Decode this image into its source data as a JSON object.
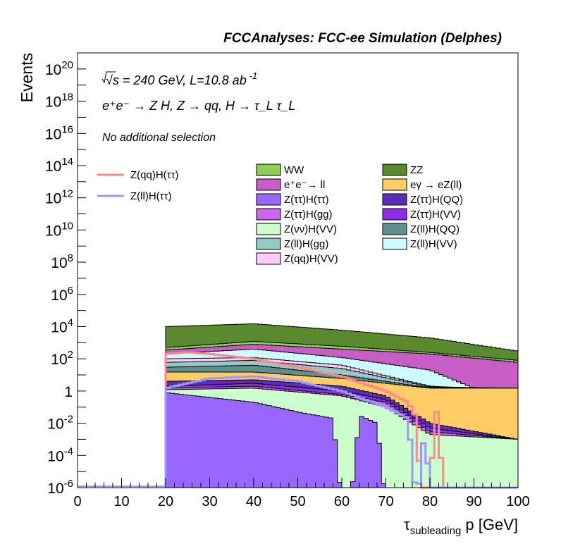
{
  "header": {
    "title": "FCCAnalyses: FCC-ee Simulation (Delphes)"
  },
  "annotations": {
    "energy_line_sqrt": "√s",
    "energy_line_rest": " = 240 GeV, L=10.8 ab",
    "energy_line_exp": "-1",
    "process_line": "e⁺e⁻ → Z H, Z → qq, H → τ_L τ_L",
    "selection": "No additional selection"
  },
  "chart_data": {
    "type": "histogram",
    "ylog": true,
    "title": "FCCAnalyses: FCC-ee Simulation (Delphes)",
    "xlabel": "τ_subleading p [GeV]",
    "xlabel_main": "τ",
    "xlabel_sub": "subleading",
    "xlabel_rest": " p [GeV]",
    "ylabel": "Events",
    "xlim": [
      0,
      100
    ],
    "ylim": [
      1e-06,
      1e+21
    ],
    "xticks": [
      "0",
      "10",
      "20",
      "30",
      "40",
      "50",
      "60",
      "70",
      "80",
      "90",
      "100"
    ],
    "yticks": [
      {
        "base": "10",
        "exp": "-6",
        "value": 1e-06
      },
      {
        "base": "10",
        "exp": "-4",
        "value": 0.0001
      },
      {
        "base": "10",
        "exp": "-2",
        "value": 0.01
      },
      {
        "base": "1",
        "exp": "",
        "value": 1
      },
      {
        "base": "10",
        "exp": "2",
        "value": 100.0
      },
      {
        "base": "10",
        "exp": "4",
        "value": 10000.0
      },
      {
        "base": "10",
        "exp": "6",
        "value": 1000000.0
      },
      {
        "base": "10",
        "exp": "8",
        "value": 100000000.0
      },
      {
        "base": "10",
        "exp": "10",
        "value": 10000000000.0
      },
      {
        "base": "10",
        "exp": "12",
        "value": 1000000000000.0
      },
      {
        "base": "10",
        "exp": "14",
        "value": 100000000000000.0
      },
      {
        "base": "10",
        "exp": "16",
        "value": 1e+16
      },
      {
        "base": "10",
        "exp": "18",
        "value": 1e+18
      },
      {
        "base": "10",
        "exp": "20",
        "value": 1e+20
      }
    ],
    "stack_envelopes": [
      {
        "name": "ZZ",
        "color": "#5a8a2e",
        "anchors": [
          [
            20,
            10000
          ],
          [
            40,
            15000
          ],
          [
            60,
            6000
          ],
          [
            80,
            2000
          ],
          [
            100,
            300
          ]
        ]
      },
      {
        "name": "WW",
        "color": "#8fcf58",
        "anchors": [
          [
            20,
            500
          ],
          [
            40,
            1200
          ],
          [
            60,
            600
          ],
          [
            80,
            250
          ],
          [
            100,
            80
          ]
        ]
      },
      {
        "name": "e⁺e⁻ → ll",
        "color": "#c85dc8",
        "anchors": [
          [
            20,
            350
          ],
          [
            40,
            800
          ],
          [
            60,
            400
          ],
          [
            80,
            200
          ],
          [
            100,
            60
          ]
        ]
      },
      {
        "name": "Z(ll)H(VV)",
        "color": "#ccfcfc",
        "anchors": [
          [
            20,
            200
          ],
          [
            40,
            400
          ],
          [
            60,
            120
          ],
          [
            80,
            20
          ],
          [
            90,
            1.5
          ],
          [
            100,
            1.5
          ]
        ]
      },
      {
        "name": "Z(qq)H(VV)",
        "color": "#ffccff",
        "anchors": [
          [
            20,
            100
          ],
          [
            40,
            120
          ],
          [
            60,
            40
          ],
          [
            80,
            2
          ],
          [
            90,
            1.5
          ],
          [
            100,
            1.5
          ]
        ]
      },
      {
        "name": "Z(ll)H(gg)",
        "color": "#96c8c8",
        "anchors": [
          [
            20,
            60
          ],
          [
            40,
            80
          ],
          [
            60,
            25
          ],
          [
            80,
            1.8
          ],
          [
            100,
            1.5
          ]
        ]
      },
      {
        "name": "Z(ll)H(QQ)",
        "color": "#5f8f8f",
        "anchors": [
          [
            20,
            30
          ],
          [
            40,
            40
          ],
          [
            60,
            10
          ],
          [
            80,
            1.6
          ],
          [
            100,
            1.5
          ]
        ]
      },
      {
        "name": "eγ → eZ(ll)",
        "color": "#ffcc66",
        "anchors": [
          [
            20,
            15
          ],
          [
            40,
            15
          ],
          [
            60,
            6
          ],
          [
            80,
            1.5
          ],
          [
            100,
            1.5
          ]
        ]
      },
      {
        "name": "Z(ττ)H(QQ)",
        "color": "#5c2eb8",
        "anchors": [
          [
            20,
            4
          ],
          [
            40,
            5
          ],
          [
            60,
            2
          ],
          [
            70,
            0.5
          ],
          [
            80,
            0.01
          ],
          [
            100,
            0.001
          ]
        ]
      },
      {
        "name": "Z(ττ)H(VV)",
        "color": "#8c2eea",
        "anchors": [
          [
            20,
            2
          ],
          [
            40,
            3
          ],
          [
            60,
            1
          ],
          [
            70,
            0.3
          ],
          [
            80,
            0.005
          ],
          [
            100,
            0.001
          ]
        ]
      },
      {
        "name": "Z(ττ)H(gg)",
        "color": "#cc66ee",
        "anchors": [
          [
            20,
            1.5
          ],
          [
            40,
            2
          ],
          [
            60,
            0.6
          ],
          [
            70,
            0.2
          ],
          [
            80,
            0.003
          ],
          [
            100,
            0.001
          ]
        ]
      },
      {
        "name": "Z(νν)H(VV)",
        "color": "#ccffcc",
        "anchors": [
          [
            20,
            1.2
          ],
          [
            40,
            1.5
          ],
          [
            60,
            0.5
          ],
          [
            70,
            0.1
          ],
          [
            80,
            0.002
          ],
          [
            100,
            0.001
          ]
        ]
      },
      {
        "name": "Z(ττ)H(ττ)",
        "color": "#9966ff",
        "anchors": [
          [
            20,
            0.8
          ],
          [
            30,
            0.4
          ],
          [
            40,
            0.2
          ],
          [
            50,
            0.05
          ],
          [
            58,
            0.02
          ],
          [
            60,
            1e-07
          ],
          [
            62,
            1e-07
          ],
          [
            64,
            0.03
          ],
          [
            68,
            0.01
          ],
          [
            70,
            1e-07
          ],
          [
            100,
            1e-07
          ]
        ]
      }
    ],
    "signals": [
      {
        "name": "Z(qq)H(ττ)",
        "color": "#ff8888",
        "points": [
          [
            20,
            200
          ],
          [
            25,
            250
          ],
          [
            30,
            200
          ],
          [
            40,
            100
          ],
          [
            50,
            30
          ],
          [
            60,
            8
          ],
          [
            70,
            1
          ],
          [
            75,
            0.2
          ],
          [
            77,
            0.02
          ],
          [
            78,
            1e-07
          ],
          [
            80,
            1e-07
          ],
          [
            81,
            0.05
          ],
          [
            82,
            0.05
          ],
          [
            83,
            1e-07
          ]
        ]
      },
      {
        "name": "Z(ll)H(ττ)",
        "color": "#9999ff",
        "points": [
          [
            20,
            1.5
          ],
          [
            30,
            6
          ],
          [
            40,
            8
          ],
          [
            50,
            4
          ],
          [
            60,
            1
          ],
          [
            70,
            0.1
          ],
          [
            75,
            0.02
          ],
          [
            77,
            1e-07
          ],
          [
            79,
            0.01
          ],
          [
            80,
            1e-07
          ],
          [
            100,
            1e-07
          ]
        ]
      }
    ],
    "legend": {
      "signals": [
        {
          "name": "Z(qq)H(ττ)",
          "color": "#ff8888"
        },
        {
          "name": "Z(ll)H(ττ)",
          "color": "#9999ff"
        }
      ],
      "backgrounds": [
        {
          "name": "WW",
          "color": "#8fcf58"
        },
        {
          "name": "ZZ",
          "color": "#5a8a2e"
        },
        {
          "name": "e⁺e⁻→ ll",
          "color": "#c85dc8"
        },
        {
          "name": "eγ → eZ(ll)",
          "color": "#ffcc66"
        },
        {
          "name": "Z(ττ)H(ττ)",
          "color": "#9966ff"
        },
        {
          "name": "Z(ττ)H(QQ)",
          "color": "#5c2eb8"
        },
        {
          "name": "Z(ττ)H(gg)",
          "color": "#cc66ee"
        },
        {
          "name": "Z(ττ)H(VV)",
          "color": "#8c2eea"
        },
        {
          "name": "Z(νν)H(VV)",
          "color": "#ccffcc"
        },
        {
          "name": "Z(ll)H(QQ)",
          "color": "#5f8f8f"
        },
        {
          "name": "Z(ll)H(gg)",
          "color": "#96c8c8"
        },
        {
          "name": "Z(ll)H(VV)",
          "color": "#ccfcfc"
        },
        {
          "name": "Z(qq)H(VV)",
          "color": "#ffccff"
        }
      ]
    }
  }
}
